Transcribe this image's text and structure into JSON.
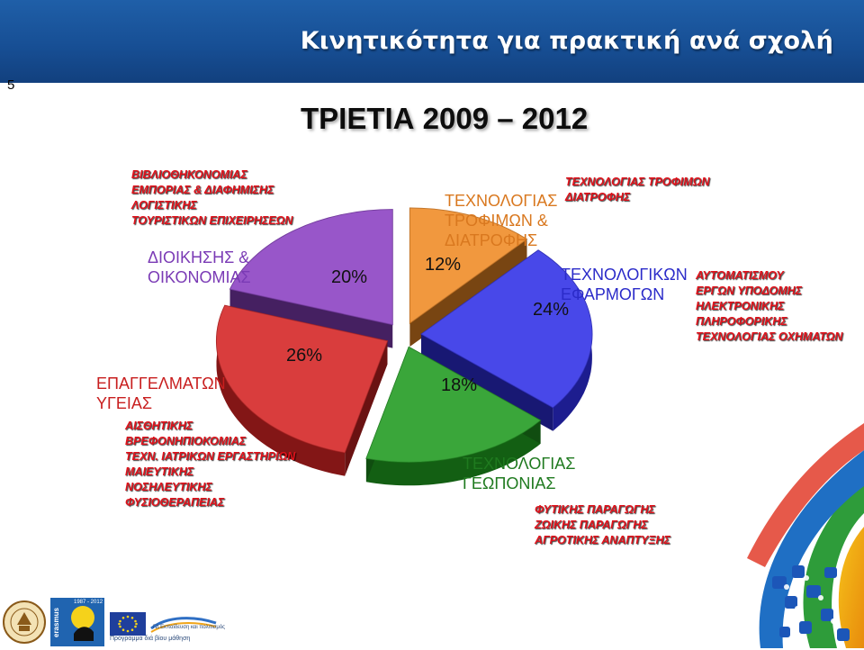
{
  "header": {
    "title": "Κινητικότητα για πρακτική ανά σχολή"
  },
  "slide": {
    "number": "5"
  },
  "period_title": "ΤΡΙΕΤΙΑ 2009 – 2012",
  "chart_data": {
    "type": "pie",
    "title": "ΤΡΙΕΤΙΑ 2009 – 2012",
    "slices": [
      {
        "label": "ΤΕΧΝΟΛΟΓΙΑΣ ΤΡΟΦΙΜΩΝ & ΔΙΑΤΡΟΦΗΣ",
        "value": 12,
        "value_label": "12%",
        "color": "#f08a24"
      },
      {
        "label": "ΤΕΧΝΟΛΟΓΙΚΩΝ ΕΦΑΡΜΟΓΩΝ",
        "value": 24,
        "value_label": "24%",
        "color": "#2f2fe6"
      },
      {
        "label": "ΤΕΧΝΟΛΟΓΙΑΣ ΓΕΩΠΟΝΙΑΣ",
        "value": 18,
        "value_label": "18%",
        "color": "#1f9a1f"
      },
      {
        "label": "ΕΠΑΓΓΕΛΜΑΤΩΝ ΥΓΕΙΑΣ",
        "value": 26,
        "value_label": "26%",
        "color": "#d42323"
      },
      {
        "label": "ΔΙΟΙΚΗΣΗΣ & ΟΙΚΟΝΟΜΙΑΣ",
        "value": 20,
        "value_label": "20%",
        "color": "#8a3fc2"
      }
    ],
    "style": "3d-exploded"
  },
  "labels": {
    "food_line1": "ΤΕΧΝΟΛΟΓΙΑΣ",
    "food_line2": "ΤΡΟΦΙΜΩΝ &",
    "food_line3": "ΔΙΑΤΡΟΦΗΣ",
    "tech_line1": "ΤΕΧΝΟΛΟΓΙΚΩΝ",
    "tech_line2": "ΕΦΑΡΜΟΓΩΝ",
    "agri_line1": "ΤΕΧΝΟΛΟΓΙΑΣ",
    "agri_line2": "ΓΕΩΠΟΝΙΑΣ",
    "health_line1": "ΕΠΑΓΓΕΛΜΑΤΩΝ",
    "health_line2": "ΥΓΕΙΑΣ",
    "mgmt_line1": "ΔΙΟΙΚΗΣΗΣ &",
    "mgmt_line2": "ΟΙΚΟΝΟΜΙΑΣ"
  },
  "departments": {
    "management": [
      "ΒΙΒΛΙΟΘΗΚΟΝΟΜΙΑΣ",
      "ΕΜΠΟΡΙΑΣ & ΔΙΑΦΗΜΙΣΗΣ",
      "ΛΟΓΙΣΤΙΚΗΣ",
      "ΤΟΥΡΙΣΤΙΚΩΝ ΕΠΙΧΕΙΡΗΣΕΩΝ"
    ],
    "food": [
      "ΤΕΧΝΟΛΟΓΙΑΣ ΤΡΟΦΙΜΩΝ",
      "ΔΙΑΤΡΟΦΗΣ"
    ],
    "technology": [
      "ΑΥΤΟΜΑΤΙΣΜΟΥ",
      "ΕΡΓΩΝ ΥΠΟΔΟΜΗΣ",
      "ΗΛΕΚΤΡΟΝΙΚΗΣ",
      "ΠΛΗΡΟΦΟΡΙΚΗΣ",
      "ΤΕΧΝΟΛΟΓΙΑΣ ΟΧΗΜΑΤΩΝ"
    ],
    "health": [
      "ΑΙΣΘΗΤΙΚΗΣ",
      "ΒΡΕΦΟΝΗΠΙΟΚΟΜΙΑΣ",
      "ΤΕΧΝ. ΙΑΤΡΙΚΩΝ ΕΡΓΑΣΤΗΡΙΩΝ",
      "ΜΑΙΕΥΤΙΚΗΣ",
      "ΝΟΣΗΛΕΥΤΙΚΗΣ",
      "ΦΥΣΙΟΘΕΡΑΠΕΙΑΣ"
    ],
    "agriculture": [
      "ΦΥΤΙΚΗΣ ΠΑΡΑΓΩΓΗΣ",
      "ΖΩΙΚΗΣ ΠΑΡΑΓΩΓΗΣ",
      "ΑΓΡΟΤΙΚΗΣ ΑΝΑΠΤΥΞΗΣ"
    ]
  },
  "footer": {
    "erasmus_text": "erasmus",
    "years_text": "1987 - 2012",
    "program_caption": "Πρόγραμμα διά βίου μάθηση",
    "ec_caption": "ΓΔ Εκπαίδευση και πολιτισμός"
  },
  "colors": {
    "header_blue": "#1a55a0",
    "food_label": "#d9781f",
    "tech_label": "#2b2bc9",
    "agri_label": "#1f7a1f",
    "health_label": "#c81e1e",
    "mgmt_label": "#7a3ab5",
    "list_red": "#e0121b"
  }
}
